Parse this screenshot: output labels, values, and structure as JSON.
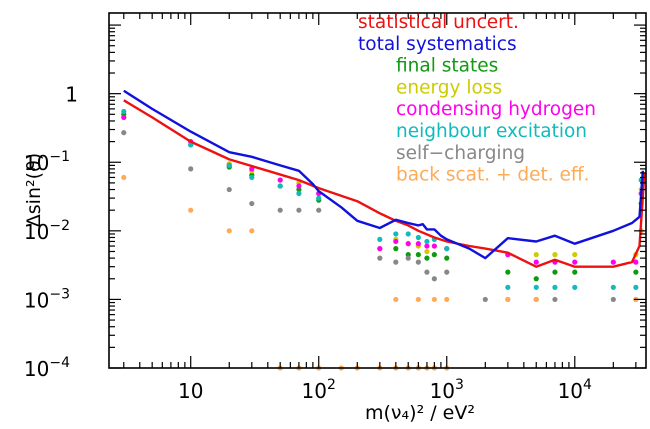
{
  "chart_data": {
    "type": "scatter",
    "title": "",
    "xlabel": "m(ν₄)² / eV²",
    "ylabel": "Δsin²(ϑ)",
    "x_scale": "log",
    "y_scale": "log",
    "xlim": [
      2.3,
      36000
    ],
    "ylim": [
      0.0001,
      15
    ],
    "grid": false,
    "legend_position": "top-right",
    "x_ticks": [
      {
        "value": 10,
        "base": "10",
        "exp": ""
      },
      {
        "value": 100,
        "base": "10",
        "exp": "2"
      },
      {
        "value": 1000,
        "base": "10",
        "exp": "3"
      },
      {
        "value": 10000,
        "base": "10",
        "exp": "4"
      }
    ],
    "y_ticks": [
      {
        "value": 0.0001,
        "base": "10",
        "exp": "−4"
      },
      {
        "value": 0.001,
        "base": "10",
        "exp": "−3"
      },
      {
        "value": 0.01,
        "base": "10",
        "exp": "−2"
      },
      {
        "value": 0.1,
        "base": "10",
        "exp": "−1"
      },
      {
        "value": 1,
        "base": "1",
        "exp": ""
      }
    ],
    "lines": [
      {
        "name": "statistical uncert.",
        "color": "#ee1111",
        "points": [
          [
            3,
            0.8
          ],
          [
            5,
            0.45
          ],
          [
            10,
            0.2
          ],
          [
            20,
            0.11
          ],
          [
            40,
            0.075
          ],
          [
            70,
            0.055
          ],
          [
            100,
            0.042
          ],
          [
            200,
            0.027
          ],
          [
            300,
            0.018
          ],
          [
            400,
            0.014
          ],
          [
            500,
            0.012
          ],
          [
            600,
            0.01
          ],
          [
            800,
            0.008
          ],
          [
            1000,
            0.007
          ],
          [
            1500,
            0.006
          ],
          [
            2000,
            0.0055
          ],
          [
            3000,
            0.0048
          ],
          [
            5000,
            0.003
          ],
          [
            7000,
            0.0038
          ],
          [
            10000,
            0.003
          ],
          [
            20000,
            0.003
          ],
          [
            28000,
            0.0035
          ],
          [
            32000,
            0.006
          ],
          [
            35000,
            0.07
          ]
        ]
      },
      {
        "name": "total systematics",
        "color": "#1111dd",
        "points": [
          [
            3,
            1.1
          ],
          [
            5,
            0.6
          ],
          [
            10,
            0.28
          ],
          [
            20,
            0.14
          ],
          [
            30,
            0.12
          ],
          [
            50,
            0.09
          ],
          [
            70,
            0.075
          ],
          [
            90,
            0.048
          ],
          [
            100,
            0.038
          ],
          [
            150,
            0.022
          ],
          [
            200,
            0.014
          ],
          [
            300,
            0.011
          ],
          [
            400,
            0.0145
          ],
          [
            500,
            0.013
          ],
          [
            600,
            0.012
          ],
          [
            650,
            0.0125
          ],
          [
            700,
            0.0105
          ],
          [
            800,
            0.0105
          ],
          [
            900,
            0.0085
          ],
          [
            1000,
            0.0075
          ],
          [
            1500,
            0.0055
          ],
          [
            2000,
            0.004
          ],
          [
            3000,
            0.0078
          ],
          [
            5000,
            0.007
          ],
          [
            7000,
            0.0085
          ],
          [
            10000,
            0.0065
          ],
          [
            20000,
            0.01
          ],
          [
            28000,
            0.013
          ],
          [
            32000,
            0.016
          ],
          [
            34000,
            0.075
          ]
        ]
      }
    ],
    "series": [
      {
        "name": "final states",
        "color": "#119911",
        "points": [
          [
            3,
            0.5
          ],
          [
            10,
            0.18
          ],
          [
            20,
            0.085
          ],
          [
            30,
            0.065
          ],
          [
            50,
            0.045
          ],
          [
            70,
            0.04
          ],
          [
            100,
            0.028
          ],
          [
            400,
            0.0055
          ],
          [
            500,
            0.0045
          ],
          [
            600,
            0.0045
          ],
          [
            700,
            0.004
          ],
          [
            800,
            0.0045
          ],
          [
            1000,
            0.004
          ],
          [
            3000,
            0.0025
          ],
          [
            5000,
            0.002
          ],
          [
            7000,
            0.0025
          ],
          [
            10000,
            0.0025
          ],
          [
            30000,
            0.0025
          ],
          [
            33000,
            0.025
          ]
        ]
      },
      {
        "name": "energy loss",
        "color": "#cccc00",
        "points": [
          [
            3,
            0.45
          ],
          [
            10,
            0.2
          ],
          [
            20,
            0.095
          ],
          [
            30,
            0.075
          ],
          [
            50,
            0.055
          ],
          [
            70,
            0.05
          ],
          [
            100,
            0.035
          ],
          [
            300,
            0.0055
          ],
          [
            400,
            0.0075
          ],
          [
            500,
            0.0065
          ],
          [
            600,
            0.006
          ],
          [
            700,
            0.005
          ],
          [
            800,
            0.006
          ],
          [
            1000,
            0.0055
          ],
          [
            3000,
            0.0045
          ],
          [
            5000,
            0.0045
          ],
          [
            7000,
            0.0045
          ],
          [
            10000,
            0.0045
          ],
          [
            30000,
            0.0045
          ],
          [
            33000,
            0.04
          ]
        ]
      },
      {
        "name": "condensing hydrogen",
        "color": "#ff00ee",
        "points": [
          [
            3,
            0.45
          ],
          [
            10,
            0.2
          ],
          [
            20,
            0.09
          ],
          [
            30,
            0.08
          ],
          [
            50,
            0.055
          ],
          [
            70,
            0.045
          ],
          [
            100,
            0.035
          ],
          [
            300,
            0.0055
          ],
          [
            400,
            0.007
          ],
          [
            500,
            0.0065
          ],
          [
            600,
            0.0065
          ],
          [
            700,
            0.006
          ],
          [
            800,
            0.006
          ],
          [
            1000,
            0.0055
          ],
          [
            3000,
            0.0045
          ],
          [
            5000,
            0.0035
          ],
          [
            7000,
            0.0035
          ],
          [
            10000,
            0.0035
          ],
          [
            20000,
            0.0035
          ],
          [
            30000,
            0.0035
          ],
          [
            33000,
            0.035
          ]
        ]
      },
      {
        "name": "neighbour excitation",
        "color": "#11bbbb",
        "points": [
          [
            3,
            0.55
          ],
          [
            10,
            0.18
          ],
          [
            20,
            0.09
          ],
          [
            30,
            0.06
          ],
          [
            50,
            0.045
          ],
          [
            70,
            0.035
          ],
          [
            100,
            0.03
          ],
          [
            300,
            0.0075
          ],
          [
            400,
            0.009
          ],
          [
            500,
            0.009
          ],
          [
            600,
            0.008
          ],
          [
            700,
            0.007
          ],
          [
            800,
            0.0075
          ],
          [
            1000,
            0.0055
          ],
          [
            3000,
            0.0015
          ],
          [
            5000,
            0.0015
          ],
          [
            7000,
            0.0015
          ],
          [
            10000,
            0.0015
          ],
          [
            20000,
            0.0015
          ],
          [
            30000,
            0.0015
          ],
          [
            33000,
            0.055
          ]
        ]
      },
      {
        "name": "self−charging",
        "color": "#888888",
        "points": [
          [
            3,
            0.27
          ],
          [
            10,
            0.08
          ],
          [
            20,
            0.04
          ],
          [
            30,
            0.025
          ],
          [
            50,
            0.02
          ],
          [
            70,
            0.02
          ],
          [
            100,
            0.02
          ],
          [
            300,
            0.004
          ],
          [
            400,
            0.0035
          ],
          [
            500,
            0.004
          ],
          [
            600,
            0.0035
          ],
          [
            700,
            0.0025
          ],
          [
            800,
            0.002
          ],
          [
            1000,
            0.0025
          ],
          [
            2000,
            0.001
          ],
          [
            3000,
            0.001
          ],
          [
            5000,
            0.001
          ],
          [
            7000,
            0.001
          ],
          [
            20000,
            0.001
          ],
          [
            30000,
            0.001
          ],
          [
            33000,
            0.01
          ]
        ]
      },
      {
        "name": "back scat. + det. eff.",
        "color": "#ffaa55",
        "points": [
          [
            3,
            0.06
          ],
          [
            10,
            0.02
          ],
          [
            20,
            0.01
          ],
          [
            30,
            0.01
          ],
          [
            50,
            0.0001
          ],
          [
            70,
            0.0001
          ],
          [
            100,
            0.0001
          ],
          [
            150,
            0.0001
          ],
          [
            200,
            0.0001
          ],
          [
            300,
            0.0001
          ],
          [
            400,
            0.0001
          ],
          [
            500,
            0.0001
          ],
          [
            600,
            0.0001
          ],
          [
            700,
            0.0001
          ],
          [
            800,
            0.0001
          ],
          [
            1000,
            0.0001
          ],
          [
            400,
            0.001
          ],
          [
            600,
            0.001
          ],
          [
            800,
            0.001
          ],
          [
            1000,
            0.001
          ],
          [
            3000,
            0.001
          ],
          [
            5000,
            0.001
          ],
          [
            30000,
            0.001
          ],
          [
            33000,
            0.01
          ]
        ]
      }
    ],
    "legend": [
      {
        "label": "statistical uncert.",
        "color": "#ee1111"
      },
      {
        "label": "total systematics",
        "color": "#1111dd"
      },
      {
        "label": "final states",
        "color": "#119911"
      },
      {
        "label": "energy loss",
        "color": "#cccc00"
      },
      {
        "label": "condensing hydrogen",
        "color": "#ff00ee"
      },
      {
        "label": "neighbour excitation",
        "color": "#11bbbb"
      },
      {
        "label": "self−charging",
        "color": "#888888"
      },
      {
        "label": "back scat. + det. eff.",
        "color": "#ffaa55"
      }
    ]
  }
}
